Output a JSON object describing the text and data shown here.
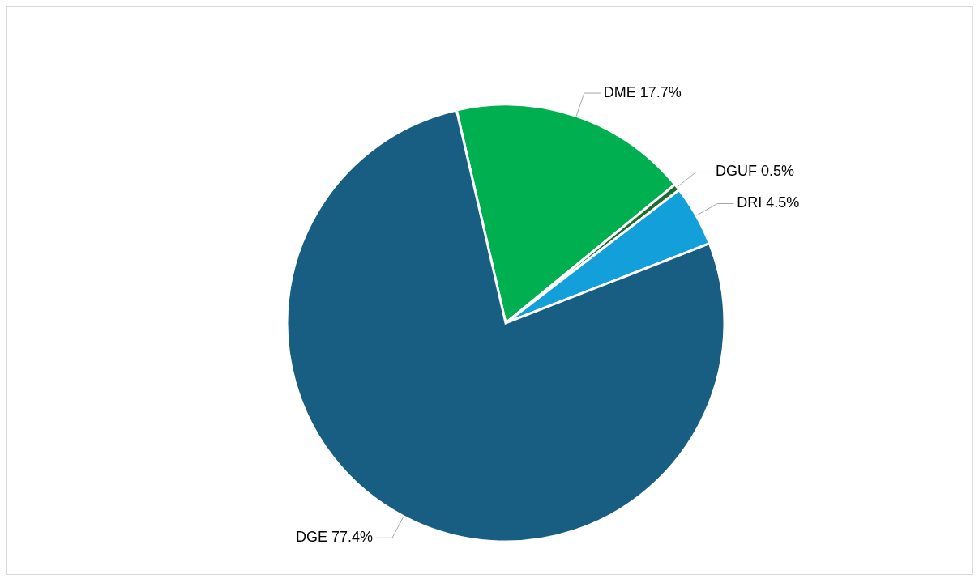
{
  "chart_data": {
    "type": "pie",
    "categories": [
      "DME",
      "DGUF",
      "DRI",
      "DGE"
    ],
    "values": [
      17.7,
      0.5,
      4.5,
      77.4
    ],
    "colors": [
      "#00b050",
      "#1f6b2e",
      "#139fda",
      "#175e82"
    ],
    "value_labels": [
      "17.7%",
      "0.5%",
      "4.5%",
      "77.4%"
    ],
    "legend": false
  }
}
